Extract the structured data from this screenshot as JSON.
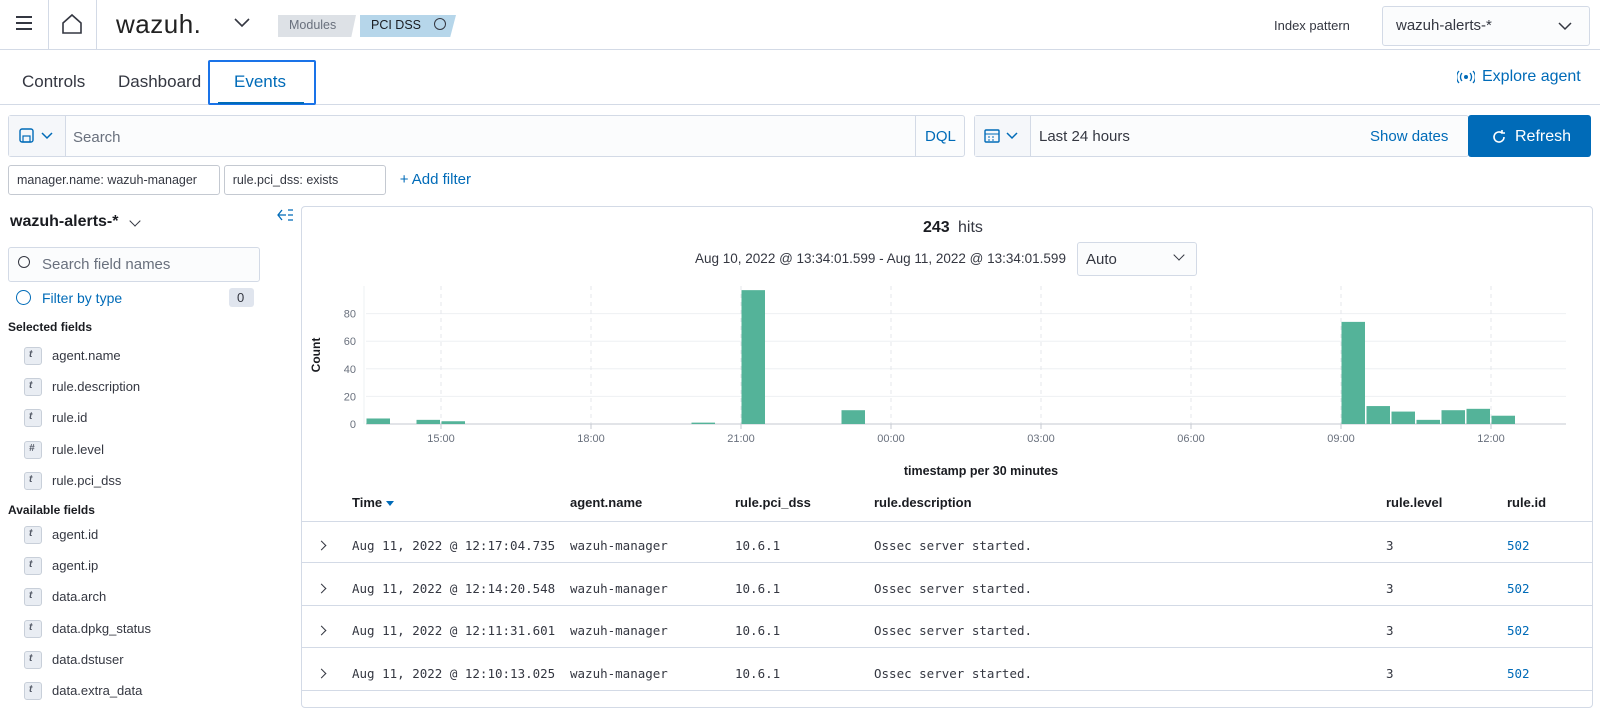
{
  "header": {
    "brand": "wazuh.",
    "breadcrumbs": [
      "Modules",
      "PCI DSS"
    ],
    "index_pattern_label": "Index pattern",
    "index_pattern": "wazuh-alerts-*"
  },
  "tabs": [
    "Controls",
    "Dashboard",
    "Events"
  ],
  "active_tab": 2,
  "explore_agent": "Explore agent",
  "search": {
    "placeholder": "Search",
    "language": "DQL",
    "time_range": "Last 24 hours",
    "show_dates": "Show dates",
    "refresh": "Refresh"
  },
  "filters": [
    "manager.name: wazuh-manager",
    "rule.pci_dss: exists"
  ],
  "add_filter": "+ Add filter",
  "sidebar": {
    "index_pattern": "wazuh-alerts-*",
    "search_placeholder": "Search field names",
    "filter_by_type": "Filter by type",
    "filter_count": 0,
    "selected_title": "Selected fields",
    "selected": [
      {
        "type": "t",
        "name": "agent.name"
      },
      {
        "type": "t",
        "name": "rule.description"
      },
      {
        "type": "t",
        "name": "rule.id"
      },
      {
        "type": "#",
        "name": "rule.level"
      },
      {
        "type": "t",
        "name": "rule.pci_dss"
      }
    ],
    "available_title": "Available fields",
    "available": [
      {
        "type": "t",
        "name": "agent.id"
      },
      {
        "type": "t",
        "name": "agent.ip"
      },
      {
        "type": "t",
        "name": "data.arch"
      },
      {
        "type": "t",
        "name": "data.dpkg_status"
      },
      {
        "type": "t",
        "name": "data.dstuser"
      },
      {
        "type": "t",
        "name": "data.extra_data"
      }
    ]
  },
  "chart_data": {
    "type": "bar",
    "hits": 243,
    "hits_label": "hits",
    "date_range": "Aug 10, 2022 @ 13:34:01.599 - Aug 11, 2022 @ 13:34:01.599",
    "interval": "Auto",
    "ylabel": "Count",
    "xlabel": "timestamp per 30 minutes",
    "categories": [
      null,
      null,
      null,
      "15:00",
      null,
      null,
      null,
      null,
      null,
      "18:00",
      null,
      null,
      null,
      null,
      null,
      "21:00",
      null,
      null,
      null,
      null,
      null,
      "00:00",
      null,
      null,
      null,
      null,
      null,
      "03:00",
      null,
      null,
      null,
      null,
      null,
      "06:00",
      null,
      null,
      null,
      null,
      null,
      "09:00",
      null,
      null,
      null,
      null,
      null,
      "12:00",
      null,
      null
    ],
    "values": [
      4,
      0,
      3,
      2,
      0,
      0,
      0,
      0,
      0,
      0,
      0,
      0,
      0,
      1,
      0,
      97,
      0,
      0,
      0,
      10,
      0,
      0,
      0,
      0,
      0,
      0,
      0,
      0,
      0,
      0,
      0,
      0,
      0,
      0,
      0,
      0,
      0,
      0,
      0,
      74,
      13,
      9,
      3,
      10,
      11,
      6,
      0,
      0
    ],
    "color": "#54b399",
    "ylim": [
      0,
      100
    ],
    "yticks": [
      0,
      20,
      40,
      60,
      80
    ],
    "grid": true
  },
  "table": {
    "columns": [
      "Time",
      "agent.name",
      "rule.pci_dss",
      "rule.description",
      "rule.level",
      "rule.id"
    ],
    "rows": [
      [
        "Aug 11, 2022 @ 12:17:04.735",
        "wazuh-manager",
        "10.6.1",
        "Ossec server started.",
        3,
        502
      ],
      [
        "Aug 11, 2022 @ 12:14:20.548",
        "wazuh-manager",
        "10.6.1",
        "Ossec server started.",
        3,
        502
      ],
      [
        "Aug 11, 2022 @ 12:11:31.601",
        "wazuh-manager",
        "10.6.1",
        "Ossec server started.",
        3,
        502
      ],
      [
        "Aug 11, 2022 @ 12:10:13.025",
        "wazuh-manager",
        "10.6.1",
        "Ossec server started.",
        3,
        502
      ]
    ]
  }
}
